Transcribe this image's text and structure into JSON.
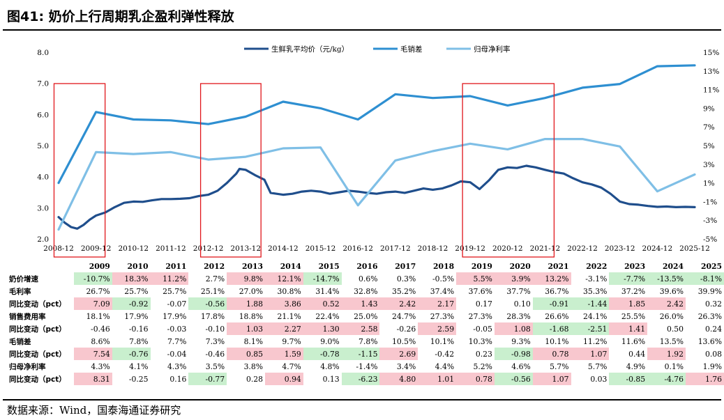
{
  "title": "图41:  奶价上行周期乳企盈利弹性释放",
  "source": "数据来源：Wind，国泰海通证券研究",
  "colors": {
    "milk_price": "#1f4e8c",
    "gross_minus_sales": "#2e8fd1",
    "net_margin": "#7fbfe6",
    "highlight_box": "#e0161b",
    "positive_fill": "#f8c7ce",
    "negative_fill": "#c9efce"
  },
  "chart_data": {
    "type": "line",
    "legend_position": "top",
    "legend": [
      "生鲜乳平均价（元/kg）",
      "毛销差",
      "归母净利率"
    ],
    "x_ticks": [
      "2008-12",
      "2009-12",
      "2010-12",
      "2011-12",
      "2012-12",
      "2013-12",
      "2014-12",
      "2015-12",
      "2016-12",
      "2017-12",
      "2018-12",
      "2019-12",
      "2020-12",
      "2021-12",
      "2022-12",
      "2023-12",
      "2024-12",
      "2025-12"
    ],
    "y_left_ticks": [
      "8.0",
      "7.0",
      "6.0",
      "5.0",
      "4.0",
      "3.0",
      "2.0"
    ],
    "y_right_ticks": [
      "15%",
      "13%",
      "11%",
      "9%",
      "7%",
      "5%",
      "3%",
      "1%",
      "-1%",
      "-3%",
      "-5%"
    ],
    "y_left_range": [
      2.0,
      8.0
    ],
    "y_right_range": [
      -5,
      15
    ],
    "grid": false,
    "highlight_periods": [
      [
        "2009-01",
        "2009-12"
      ],
      [
        "2012-12",
        "2014-02"
      ],
      [
        "2019-12",
        "2021-12"
      ]
    ],
    "series": [
      {
        "name": "生鲜乳平均价（元/kg）",
        "axis": "left",
        "points": [
          [
            "2008-12",
            2.7
          ],
          [
            "2009-02",
            2.52
          ],
          [
            "2009-04",
            2.38
          ],
          [
            "2009-06",
            2.33
          ],
          [
            "2009-08",
            2.45
          ],
          [
            "2009-10",
            2.62
          ],
          [
            "2009-12",
            2.75
          ],
          [
            "2010-03",
            2.85
          ],
          [
            "2010-06",
            3.02
          ],
          [
            "2010-09",
            3.16
          ],
          [
            "2010-12",
            3.2
          ],
          [
            "2011-03",
            3.19
          ],
          [
            "2011-06",
            3.24
          ],
          [
            "2011-09",
            3.28
          ],
          [
            "2011-12",
            3.28
          ],
          [
            "2012-03",
            3.29
          ],
          [
            "2012-06",
            3.31
          ],
          [
            "2012-09",
            3.38
          ],
          [
            "2012-12",
            3.42
          ],
          [
            "2013-03",
            3.55
          ],
          [
            "2013-06",
            3.8
          ],
          [
            "2013-09",
            4.1
          ],
          [
            "2013-10",
            4.25
          ],
          [
            "2013-12",
            4.22
          ],
          [
            "2014-03",
            4.05
          ],
          [
            "2014-06",
            3.9
          ],
          [
            "2014-08",
            3.48
          ],
          [
            "2014-12",
            3.42
          ],
          [
            "2015-03",
            3.45
          ],
          [
            "2015-06",
            3.52
          ],
          [
            "2015-09",
            3.55
          ],
          [
            "2015-12",
            3.52
          ],
          [
            "2016-03",
            3.45
          ],
          [
            "2016-06",
            3.5
          ],
          [
            "2016-09",
            3.55
          ],
          [
            "2016-12",
            3.52
          ],
          [
            "2017-03",
            3.48
          ],
          [
            "2017-06",
            3.45
          ],
          [
            "2017-09",
            3.5
          ],
          [
            "2017-12",
            3.52
          ],
          [
            "2018-03",
            3.48
          ],
          [
            "2018-06",
            3.55
          ],
          [
            "2018-09",
            3.62
          ],
          [
            "2018-12",
            3.58
          ],
          [
            "2019-03",
            3.62
          ],
          [
            "2019-06",
            3.72
          ],
          [
            "2019-09",
            3.85
          ],
          [
            "2019-12",
            3.82
          ],
          [
            "2020-03",
            3.6
          ],
          [
            "2020-06",
            3.88
          ],
          [
            "2020-09",
            4.22
          ],
          [
            "2020-12",
            4.3
          ],
          [
            "2021-03",
            4.28
          ],
          [
            "2021-06",
            4.35
          ],
          [
            "2021-09",
            4.3
          ],
          [
            "2021-12",
            4.22
          ],
          [
            "2022-03",
            4.15
          ],
          [
            "2022-06",
            4.1
          ],
          [
            "2022-09",
            3.95
          ],
          [
            "2022-12",
            3.82
          ],
          [
            "2023-03",
            3.75
          ],
          [
            "2023-06",
            3.65
          ],
          [
            "2023-09",
            3.45
          ],
          [
            "2023-12",
            3.2
          ],
          [
            "2024-03",
            3.12
          ],
          [
            "2024-06",
            3.1
          ],
          [
            "2024-09",
            3.06
          ],
          [
            "2024-12",
            3.03
          ],
          [
            "2025-03",
            3.04
          ],
          [
            "2025-06",
            3.02
          ],
          [
            "2025-09",
            3.03
          ],
          [
            "2025-12",
            3.02
          ]
        ]
      },
      {
        "name": "毛销差",
        "axis": "right",
        "points": [
          [
            "2008-12",
            1.0
          ],
          [
            "2009-12",
            8.6
          ],
          [
            "2010-12",
            7.8
          ],
          [
            "2011-12",
            7.7
          ],
          [
            "2012-12",
            7.3
          ],
          [
            "2013-12",
            8.1
          ],
          [
            "2014-12",
            9.7
          ],
          [
            "2015-12",
            9.0
          ],
          [
            "2016-12",
            7.8
          ],
          [
            "2017-12",
            10.5
          ],
          [
            "2018-12",
            10.1
          ],
          [
            "2019-12",
            10.3
          ],
          [
            "2020-12",
            9.3
          ],
          [
            "2021-12",
            10.1
          ],
          [
            "2022-12",
            11.2
          ],
          [
            "2023-12",
            11.6
          ],
          [
            "2024-12",
            13.5
          ],
          [
            "2025-12",
            13.6
          ]
        ]
      },
      {
        "name": "归母净利率",
        "axis": "right",
        "points": [
          [
            "2008-12",
            -4.0
          ],
          [
            "2009-12",
            4.3
          ],
          [
            "2010-12",
            4.1
          ],
          [
            "2011-12",
            4.3
          ],
          [
            "2012-12",
            3.5
          ],
          [
            "2013-12",
            3.8
          ],
          [
            "2014-12",
            4.7
          ],
          [
            "2015-12",
            4.8
          ],
          [
            "2016-12",
            -1.4
          ],
          [
            "2017-12",
            3.4
          ],
          [
            "2018-12",
            4.4
          ],
          [
            "2019-12",
            5.2
          ],
          [
            "2020-12",
            4.6
          ],
          [
            "2021-12",
            5.7
          ],
          [
            "2022-12",
            5.7
          ],
          [
            "2023-12",
            4.9
          ],
          [
            "2024-12",
            0.1
          ],
          [
            "2025-12",
            1.9
          ]
        ]
      }
    ]
  },
  "table": {
    "years": [
      "2009",
      "2010",
      "2011",
      "2012",
      "2013",
      "2014",
      "2015",
      "2016",
      "2017",
      "2018",
      "2019",
      "2020",
      "2021",
      "2022",
      "2023",
      "2024",
      "2025"
    ],
    "rows": [
      {
        "label": "奶价增速",
        "values": [
          "-10.7%",
          "18.3%",
          "11.2%",
          "2.7%",
          "9.8%",
          "12.1%",
          "-14.7%",
          "0.6%",
          "0.3%",
          "-0.5%",
          "5.5%",
          "3.9%",
          "13.2%",
          "-3.1%",
          "-7.7%",
          "-13.5%",
          "-8.1%"
        ],
        "fills": [
          "neg",
          "pos",
          "pos",
          "",
          "pos",
          "pos",
          "neg",
          "",
          "",
          "",
          "pos",
          "pos",
          "pos",
          "",
          "neg",
          "neg",
          "neg"
        ]
      },
      {
        "label": "毛利率",
        "values": [
          "26.7%",
          "25.7%",
          "25.7%",
          "25.1%",
          "27.0%",
          "30.8%",
          "31.4%",
          "32.8%",
          "35.2%",
          "37.4%",
          "37.6%",
          "37.7%",
          "36.7%",
          "35.3%",
          "37.2%",
          "39.6%",
          "39.9%"
        ],
        "fills": [
          "",
          "",
          "",
          "",
          "",
          "",
          "",
          "",
          "",
          "",
          "",
          "",
          "",
          "",
          "",
          "",
          ""
        ]
      },
      {
        "label": "同比变动（pct）",
        "values": [
          "7.09",
          "-0.92",
          "-0.07",
          "-0.56",
          "1.88",
          "3.86",
          "0.52",
          "1.43",
          "2.42",
          "2.17",
          "0.17",
          "0.10",
          "-0.91",
          "-1.44",
          "1.85",
          "2.42",
          "0.32"
        ],
        "fills": [
          "pos",
          "neg",
          "",
          "neg",
          "pos",
          "pos",
          "pos",
          "pos",
          "pos",
          "pos",
          "",
          "",
          "neg",
          "neg",
          "pos",
          "pos",
          ""
        ]
      },
      {
        "label": "销售费用率",
        "values": [
          "18.1%",
          "17.9%",
          "17.9%",
          "17.8%",
          "18.8%",
          "21.1%",
          "22.4%",
          "25.0%",
          "24.7%",
          "27.3%",
          "27.3%",
          "28.3%",
          "26.6%",
          "24.1%",
          "25.5%",
          "26.0%",
          "26.3%"
        ],
        "fills": [
          "",
          "",
          "",
          "",
          "",
          "",
          "",
          "",
          "",
          "",
          "",
          "",
          "",
          "",
          "",
          "",
          ""
        ]
      },
      {
        "label": "同比变动（pct）",
        "values": [
          "-0.46",
          "-0.16",
          "-0.03",
          "-0.10",
          "1.03",
          "2.27",
          "1.30",
          "2.58",
          "-0.26",
          "2.59",
          "-0.05",
          "1.08",
          "-1.68",
          "-2.51",
          "1.41",
          "0.50",
          "0.24"
        ],
        "fills": [
          "",
          "",
          "",
          "",
          "pos",
          "pos",
          "pos",
          "pos",
          "",
          "pos",
          "",
          "pos",
          "neg",
          "neg",
          "pos",
          "",
          ""
        ]
      },
      {
        "label": "毛销差",
        "values": [
          "8.6%",
          "7.8%",
          "7.7%",
          "7.3%",
          "8.1%",
          "9.7%",
          "9.0%",
          "7.8%",
          "10.5%",
          "10.1%",
          "10.3%",
          "9.3%",
          "10.1%",
          "11.2%",
          "11.6%",
          "13.5%",
          "13.6%"
        ],
        "fills": [
          "",
          "",
          "",
          "",
          "",
          "",
          "",
          "",
          "",
          "",
          "",
          "",
          "",
          "",
          "",
          "",
          ""
        ]
      },
      {
        "label": "同比变动（pct）",
        "values": [
          "7.54",
          "-0.76",
          "-0.04",
          "-0.46",
          "0.85",
          "1.59",
          "-0.78",
          "-1.15",
          "2.69",
          "-0.42",
          "0.23",
          "-0.98",
          "0.78",
          "1.07",
          "0.44",
          "1.92",
          "0.08"
        ],
        "fills": [
          "pos",
          "neg",
          "",
          "",
          "pos",
          "pos",
          "neg",
          "neg",
          "pos",
          "",
          "",
          "neg",
          "pos",
          "pos",
          "",
          "pos",
          ""
        ]
      },
      {
        "label": "归母净利率",
        "values": [
          "4.3%",
          "4.1%",
          "4.3%",
          "3.5%",
          "3.8%",
          "4.7%",
          "4.8%",
          "-1.4%",
          "3.4%",
          "4.4%",
          "5.2%",
          "4.6%",
          "5.7%",
          "5.7%",
          "4.9%",
          "0.1%",
          "1.9%"
        ],
        "fills": [
          "",
          "",
          "",
          "",
          "",
          "",
          "",
          "",
          "",
          "",
          "",
          "",
          "",
          "",
          "",
          "",
          ""
        ]
      },
      {
        "label": "同比变动（pct）",
        "values": [
          "8.31",
          "-0.25",
          "0.16",
          "-0.77",
          "0.28",
          "0.94",
          "0.13",
          "-6.23",
          "4.80",
          "1.01",
          "0.78",
          "-0.56",
          "1.07",
          "0.03",
          "-0.85",
          "-4.76",
          "1.76"
        ],
        "fills": [
          "pos",
          "",
          "",
          "neg",
          "",
          "pos",
          "",
          "neg",
          "pos",
          "pos",
          "pos",
          "neg",
          "pos",
          "",
          "neg",
          "neg",
          "pos"
        ]
      }
    ]
  }
}
